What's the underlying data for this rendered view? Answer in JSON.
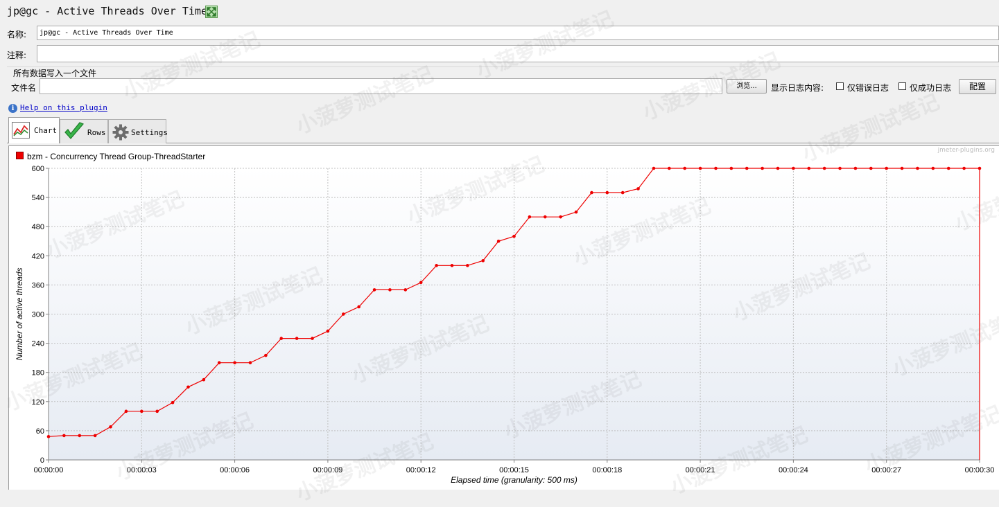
{
  "header": {
    "title": "jp@gc - Active Threads Over Time"
  },
  "form": {
    "name_label": "名称:",
    "name_value": "jp@gc - Active Threads Over Time",
    "comment_label": "注释:",
    "comment_value": "",
    "file_section_title": "所有数据写入一个文件",
    "filename_label": "文件名",
    "filename_value": "",
    "browse_label": "浏览...",
    "log_display_label": "显示日志内容:",
    "errors_only_label": "仅错误日志",
    "errors_only_checked": false,
    "success_only_label": "仅成功日志",
    "success_only_checked": false,
    "configure_label": "配置"
  },
  "help": {
    "link_text": "Help on this plugin"
  },
  "tabs": [
    {
      "label": "Chart",
      "icon": "chart-icon",
      "active": true
    },
    {
      "label": "Rows",
      "icon": "checkmark-icon",
      "active": false
    },
    {
      "label": "Settings",
      "icon": "gear-icon",
      "active": false
    }
  ],
  "watermark": {
    "site": "jmeter-plugins.org",
    "overlay_text": "小菠萝测试笔记"
  },
  "colors": {
    "series": "#ee0000",
    "grid": "#c0c0c0"
  },
  "chart_data": {
    "type": "line",
    "xlabel": "Elapsed time (granularity: 500 ms)",
    "ylabel": "Number of active threads",
    "xlim": [
      0,
      30
    ],
    "ylim": [
      0,
      600
    ],
    "x_ticks": [
      "00:00:00",
      "00:00:03",
      "00:00:06",
      "00:00:09",
      "00:00:12",
      "00:00:15",
      "00:00:18",
      "00:00:21",
      "00:00:24",
      "00:00:27",
      "00:00:30"
    ],
    "y_ticks": [
      0,
      60,
      120,
      180,
      240,
      300,
      360,
      420,
      480,
      540,
      600
    ],
    "legend_position": "top-left",
    "grid": true,
    "series": [
      {
        "name": "bzm - Concurrency Thread Group-ThreadStarter",
        "x": [
          0,
          0.5,
          1,
          1.5,
          2,
          2.5,
          3,
          3.5,
          4,
          4.5,
          5,
          5.5,
          6,
          6.5,
          7,
          7.5,
          8,
          8.5,
          9,
          9.5,
          10,
          10.5,
          11,
          11.5,
          12,
          12.5,
          13,
          13.5,
          14,
          14.5,
          15,
          15.5,
          16,
          16.5,
          17,
          17.5,
          18,
          18.5,
          19,
          19.5,
          20,
          20.5,
          21,
          21.5,
          22,
          22.5,
          23,
          23.5,
          24,
          24.5,
          25,
          25.5,
          26,
          26.5,
          27,
          27.5,
          28,
          28.5,
          29,
          29.5,
          30,
          30
        ],
        "values": [
          48,
          50,
          50,
          50,
          68,
          100,
          100,
          100,
          118,
          150,
          165,
          200,
          200,
          200,
          215,
          250,
          250,
          250,
          265,
          300,
          315,
          350,
          350,
          350,
          365,
          400,
          400,
          400,
          410,
          450,
          460,
          500,
          500,
          500,
          510,
          550,
          550,
          550,
          558,
          600,
          600,
          600,
          600,
          600,
          600,
          600,
          600,
          600,
          600,
          600,
          600,
          600,
          600,
          600,
          600,
          600,
          600,
          600,
          600,
          600,
          600,
          0
        ]
      }
    ]
  }
}
